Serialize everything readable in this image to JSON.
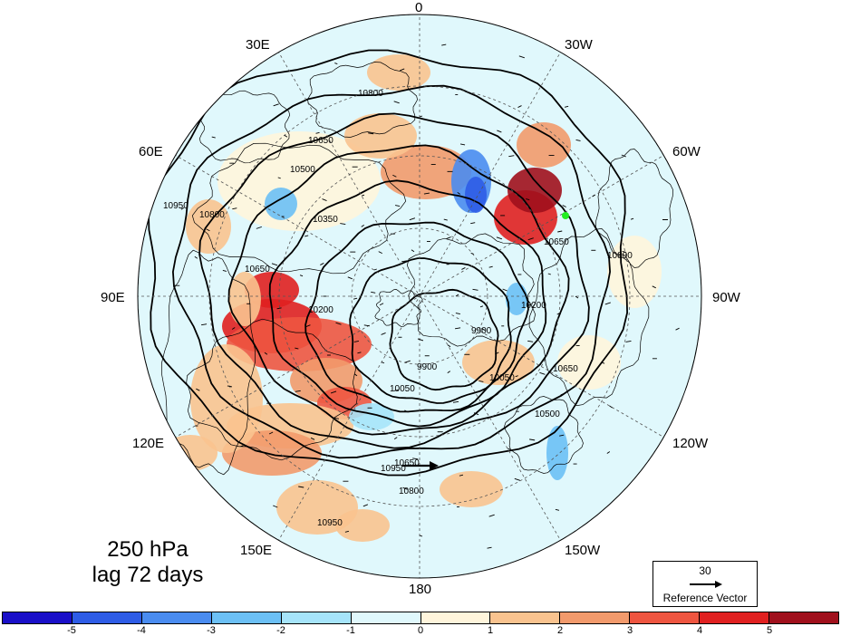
{
  "title": {
    "line1": "250 hPa",
    "line2": "lag 72 days"
  },
  "longitude_labels": [
    {
      "id": "0",
      "text": "0"
    },
    {
      "id": "30w",
      "text": "30W"
    },
    {
      "id": "60w",
      "text": "60W"
    },
    {
      "id": "90w",
      "text": "90W"
    },
    {
      "id": "120w",
      "text": "120W"
    },
    {
      "id": "150w",
      "text": "150W"
    },
    {
      "id": "180",
      "text": "180"
    },
    {
      "id": "150e",
      "text": "150E"
    },
    {
      "id": "120e",
      "text": "120E"
    },
    {
      "id": "90e",
      "text": "90E"
    },
    {
      "id": "60e",
      "text": "60E"
    },
    {
      "id": "30e",
      "text": "30E"
    }
  ],
  "contour_labels": [
    "10800",
    "10650",
    "10500",
    "10350",
    "10950",
    "10800",
    "10650",
    "10200",
    "9900",
    "10050",
    "10650",
    "10800",
    "10950",
    "10650",
    "10200",
    "9900",
    "10050",
    "10650",
    "10500",
    "10800",
    "10950"
  ],
  "reference_vector": {
    "value": "30",
    "label": "Reference Vector"
  },
  "colorbar": {
    "ticks": [
      "-5",
      "-4",
      "-3",
      "-2",
      "-1",
      "0",
      "1",
      "2",
      "3",
      "4",
      "5"
    ],
    "colors": [
      "#1a0fc8",
      "#2e5ce6",
      "#4a8cf0",
      "#6cc0f5",
      "#a6e4fa",
      "#e0f8fc",
      "#fff5dc",
      "#f9c38f",
      "#f29a6c",
      "#ee5540",
      "#e02020",
      "#a0101c"
    ]
  },
  "field_colors": {
    "land": "#000000",
    "contour": "#000000",
    "grid": "#555555",
    "marker": "#22ee22"
  }
}
